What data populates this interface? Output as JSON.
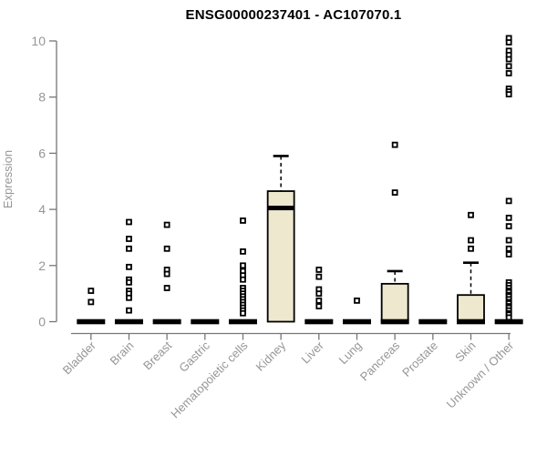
{
  "chart_data": {
    "type": "boxplot",
    "title": "ENSG00000237401 - AC107070.1",
    "xlabel": "",
    "ylabel": "Expression",
    "ylim": [
      0,
      10
    ],
    "yticks": [
      0,
      2,
      4,
      6,
      8,
      10
    ],
    "grid": false,
    "legend": null,
    "categories": [
      "Bladder",
      "Brain",
      "Breast",
      "Gastric",
      "Hematopoietic cells",
      "Kidney",
      "Liver",
      "Lung",
      "Pancreas",
      "Prostate",
      "Skin",
      "Unknown / Other"
    ],
    "boxes": [
      {
        "category": "Bladder",
        "q1": 0,
        "median": 0,
        "q3": 0,
        "whisker_low": 0,
        "whisker_high": 0,
        "outliers": [
          1.1,
          0.7
        ]
      },
      {
        "category": "Brain",
        "q1": 0,
        "median": 0,
        "q3": 0,
        "whisker_low": 0,
        "whisker_high": 0,
        "outliers": [
          3.55,
          2.95,
          2.6,
          1.95,
          1.5,
          1.4,
          1.1,
          1.0,
          0.85,
          0.4
        ]
      },
      {
        "category": "Breast",
        "q1": 0,
        "median": 0,
        "q3": 0,
        "whisker_low": 0,
        "whisker_high": 0,
        "outliers": [
          3.45,
          2.6,
          1.85,
          1.7,
          1.2
        ]
      },
      {
        "category": "Gastric",
        "q1": 0,
        "median": 0,
        "q3": 0,
        "whisker_low": 0,
        "whisker_high": 0,
        "outliers": []
      },
      {
        "category": "Hematopoietic cells",
        "q1": 0,
        "median": 0,
        "q3": 0,
        "whisker_low": 0,
        "whisker_high": 0,
        "outliers": [
          3.6,
          2.5,
          2.0,
          1.8,
          1.65,
          1.5,
          1.2,
          1.1,
          1.0,
          0.9,
          0.8,
          0.7,
          0.6,
          0.5,
          0.4,
          0.3
        ]
      },
      {
        "category": "Kidney",
        "q1": 0,
        "median": 4.05,
        "q3": 4.65,
        "whisker_low": 0,
        "whisker_high": 5.9,
        "outliers": []
      },
      {
        "category": "Liver",
        "q1": 0,
        "median": 0,
        "q3": 0,
        "whisker_low": 0,
        "whisker_high": 0,
        "outliers": [
          1.85,
          1.6,
          1.15,
          1.0,
          0.75,
          0.55
        ]
      },
      {
        "category": "Lung",
        "q1": 0,
        "median": 0,
        "q3": 0,
        "whisker_low": 0,
        "whisker_high": 0,
        "outliers": [
          0.75
        ]
      },
      {
        "category": "Pancreas",
        "q1": 0,
        "median": 0,
        "q3": 1.35,
        "whisker_low": 0,
        "whisker_high": 1.8,
        "outliers": [
          6.3,
          4.6
        ]
      },
      {
        "category": "Prostate",
        "q1": 0,
        "median": 0,
        "q3": 0,
        "whisker_low": 0,
        "whisker_high": 0,
        "outliers": []
      },
      {
        "category": "Skin",
        "q1": 0,
        "median": 0,
        "q3": 0.95,
        "whisker_low": 0,
        "whisker_high": 2.1,
        "outliers": [
          3.8,
          2.9,
          2.6
        ]
      },
      {
        "category": "Unknown / Other",
        "q1": 0,
        "median": 0,
        "q3": 0,
        "whisker_low": 0,
        "whisker_high": 0,
        "outliers": [
          10.1,
          9.95,
          9.65,
          9.5,
          9.35,
          9.1,
          8.85,
          8.3,
          8.2,
          8.1,
          4.3,
          3.7,
          3.4,
          2.9,
          2.6,
          2.4,
          1.4,
          1.3,
          1.2,
          1.1,
          1.05,
          0.95,
          0.9,
          0.8,
          0.7,
          0.65,
          0.55,
          0.5,
          0.4,
          0.3,
          0.25,
          0.15
        ]
      }
    ],
    "style": {
      "box_fill": "#EDE8CE",
      "box_border": "#000000",
      "median_color": "#000000",
      "whisker_color": "#000000",
      "marker": "open-square",
      "marker_color": "#000000",
      "axis_line_color": "#767676",
      "tick_label_color": "#969696",
      "title_color": "#000000",
      "background": "#FFFFFF"
    }
  }
}
